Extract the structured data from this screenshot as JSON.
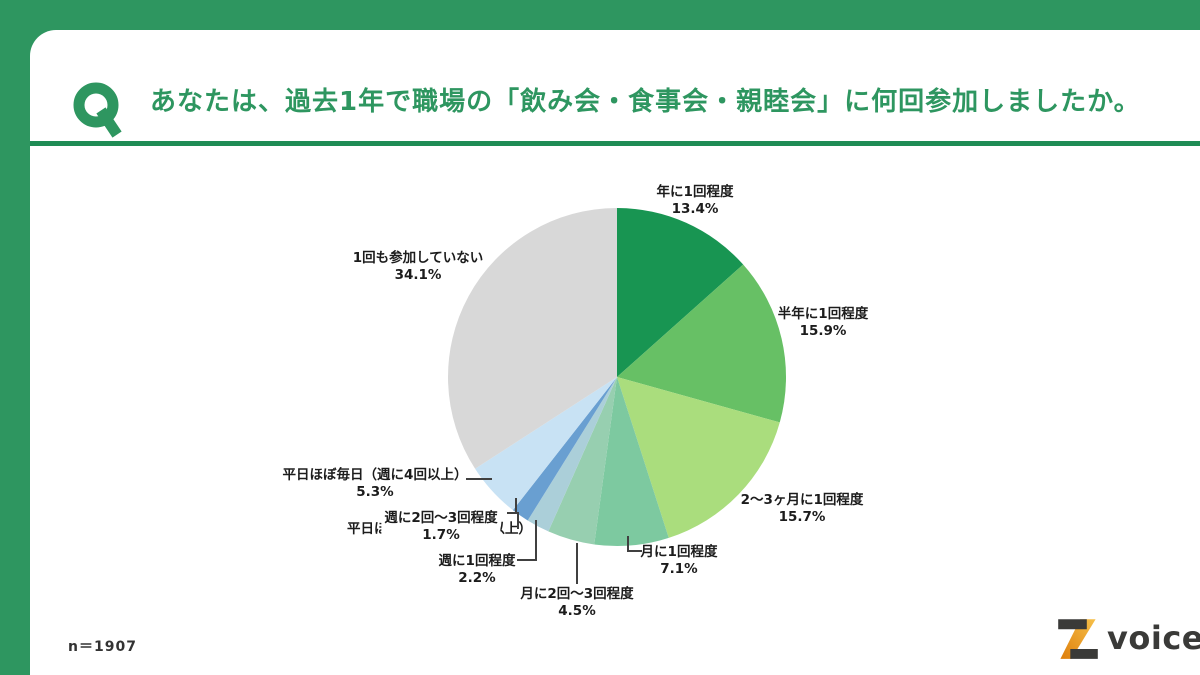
{
  "header": {
    "q_mark": "Q",
    "title": "あなたは、過去1年で職場の「飲み会・食事会・親睦会」に何回参加しましたか。"
  },
  "footer": {
    "sample_size_label": "n＝1907"
  },
  "logo": {
    "text": "voice"
  },
  "colors": {
    "brand_green": "#2E9660",
    "divider_green": "#1F8C55",
    "label_text": "#1c1c1c",
    "leader_line": "#404040",
    "logo_dark": "#3a3a38",
    "logo_orange": "#ED9017"
  },
  "chart_data": {
    "type": "pie",
    "title": "あなたは、過去1年で職場の「飲み会・食事会・親睦会」に何回参加しましたか。",
    "sample_size": 1907,
    "start_angle_deg": 0,
    "direction": "clockwise",
    "legend_position": "outside-labels",
    "segments": [
      {
        "label": "年に1回程度",
        "value": 13.4,
        "pct_label": "13.4%",
        "color": "#189552"
      },
      {
        "label": "半年に1回程度",
        "value": 15.9,
        "pct_label": "15.9%",
        "color": "#67C065"
      },
      {
        "label": "2〜3ヶ月に1回程度",
        "value": 15.7,
        "pct_label": "15.7%",
        "color": "#AADD7D"
      },
      {
        "label": "月に1回程度",
        "value": 7.1,
        "pct_label": "7.1%",
        "color": "#7DC9A0"
      },
      {
        "label": "月に2回〜3回程度",
        "value": 4.5,
        "pct_label": "4.5%",
        "color": "#97CFB0"
      },
      {
        "label": "週に1回程度",
        "value": 2.2,
        "pct_label": "2.2%",
        "color": "#ABCFD9"
      },
      {
        "label": "週に2回〜3回程度",
        "value": 1.7,
        "pct_label": "1.7%",
        "color": "#699FD1"
      },
      {
        "label": "平日ほぼ毎日（週に4回以上）",
        "value": 5.3,
        "pct_label": "5.3%",
        "color": "#C8E2F4"
      },
      {
        "label": "1回も参加していない",
        "value": 34.1,
        "pct_label": "34.1%",
        "color": "#D8D8D8"
      }
    ],
    "overlap_artifact": {
      "text": "平日ほぼ毎日（週に4回以上）",
      "note": "duplicated label partially hidden behind the 1.7% label in the source image"
    }
  }
}
